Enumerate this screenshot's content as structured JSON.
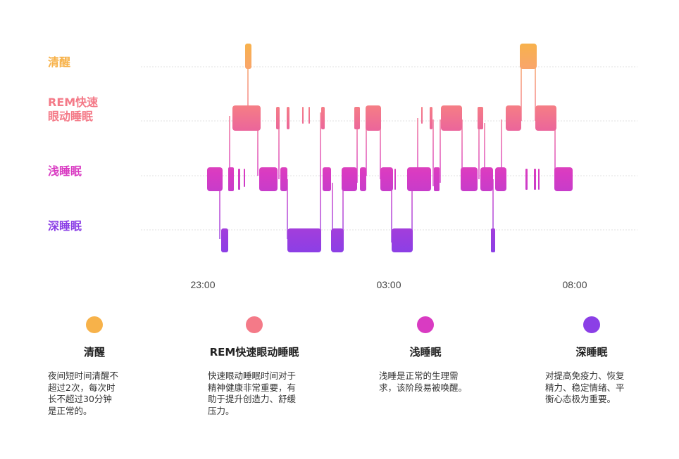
{
  "chart_data": {
    "type": "hypnogram",
    "stages": [
      {
        "key": "awake",
        "label": "清醒",
        "color": "#F7B24A"
      },
      {
        "key": "rem",
        "label_lines": [
          "REM快速",
          "眼动睡眠"
        ],
        "color": "#F47A88"
      },
      {
        "key": "light",
        "label": "浅睡眠",
        "color": "#D93BC2"
      },
      {
        "key": "deep",
        "label": "深睡眠",
        "color": "#8B3FE6"
      }
    ],
    "x_ticks": [
      "23:00",
      "03:00",
      "08:00"
    ],
    "legend": [
      {
        "color": "#F7B24A",
        "title": "清醒",
        "desc": "夜间短时间清醒不\n超过2次，每次时\n长不超过30分钟\n是正常的。"
      },
      {
        "color": "#F47A88",
        "title": "REM快速眼动睡眠",
        "desc": "快速眼动睡眠时间对于\n精神健康非常重要，有\n助于提升创造力、舒缓\n压力。"
      },
      {
        "color": "#D93BC2",
        "title": "浅睡眠",
        "desc": "浅睡是正常的生理需\n求，该阶段易被唤醒。"
      },
      {
        "color": "#8B3FE6",
        "title": "深睡眠",
        "desc": "对提高免疫力、恢复\n精力、稳定情绪、平\n衡心态极为重要。"
      }
    ]
  }
}
